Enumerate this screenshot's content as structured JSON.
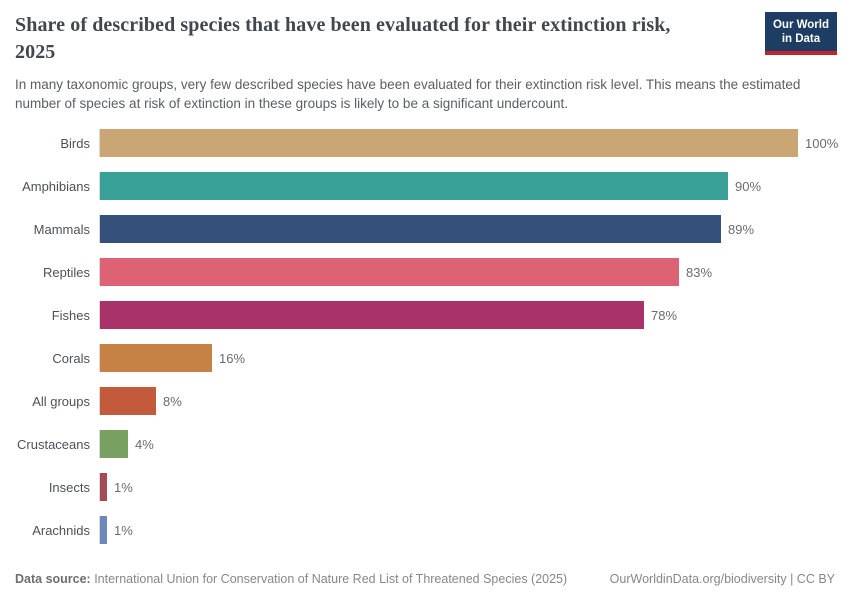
{
  "header": {
    "title": "Share of described species that have been evaluated for their extinction risk, 2025",
    "subtitle": "In many taxonomic groups, very few described species have been evaluated for their extinction risk level. This means the estimated number of species at risk of extinction in these groups is likely to be a significant undercount.",
    "logo": {
      "line1": "Our World",
      "line2": "in Data",
      "bg_color": "#1d3d63",
      "stripe_color": "#c0232c"
    }
  },
  "chart_data": {
    "type": "bar",
    "orientation": "horizontal",
    "title": "Share of described species that have been evaluated for their extinction risk, 2025",
    "xlabel": "",
    "ylabel": "",
    "xlim": [
      0,
      100
    ],
    "grid": false,
    "legend": false,
    "value_suffix": "%",
    "categories": [
      "Birds",
      "Amphibians",
      "Mammals",
      "Reptiles",
      "Fishes",
      "Corals",
      "All groups",
      "Crustaceans",
      "Insects",
      "Arachnids"
    ],
    "values": [
      100,
      90,
      89,
      83,
      78,
      16,
      8,
      4,
      1,
      1
    ],
    "value_labels": [
      "100%",
      "90%",
      "89%",
      "83%",
      "78%",
      "16%",
      "8%",
      "4%",
      "1%",
      "1%"
    ],
    "colors": [
      "#caa675",
      "#39a198",
      "#35517b",
      "#de6275",
      "#a93368",
      "#c58244",
      "#c25a3b",
      "#77a061",
      "#a44b55",
      "#6f88bc"
    ]
  },
  "footer": {
    "datasource_label": "Data source:",
    "datasource_text": " International Union for Conservation of Nature Red List of Threatened Species (2025)",
    "attribution": "OurWorldinData.org/biodiversity | CC BY"
  }
}
